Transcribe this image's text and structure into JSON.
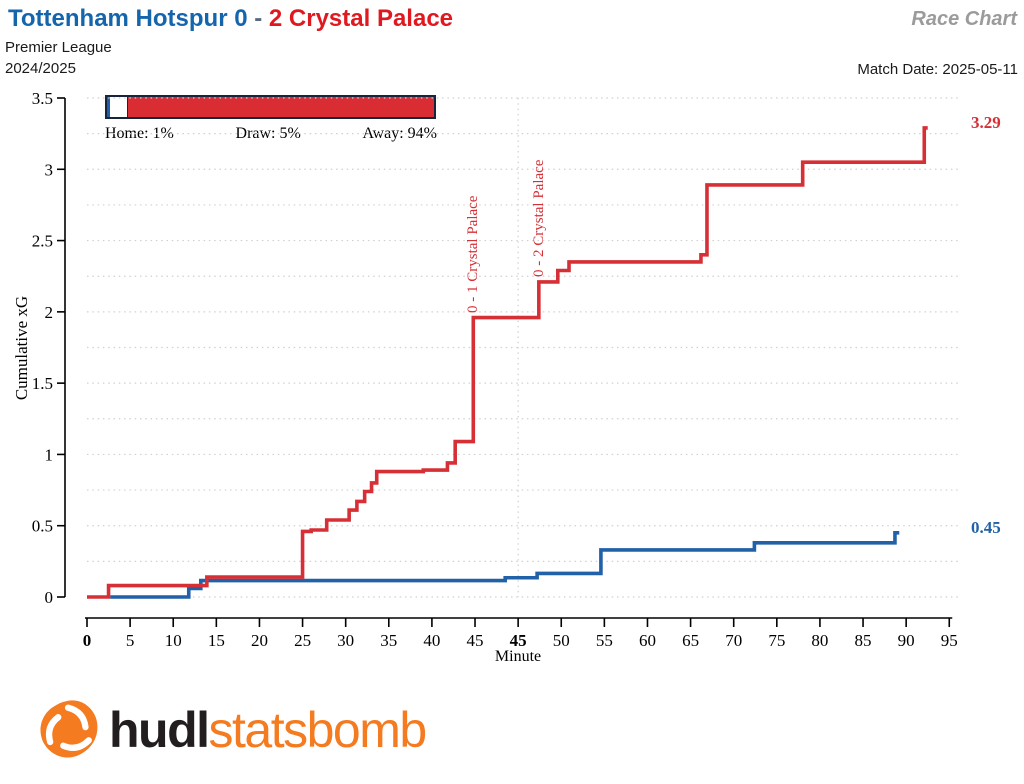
{
  "header": {
    "title_home": "Tottenham Hotspur 0",
    "title_separator": " - ",
    "title_away": "2 Crystal Palace",
    "chart_type_label": "Race Chart",
    "competition": "Premier League",
    "season": "2024/2025",
    "match_date": "Match Date: 2025-05-11"
  },
  "probability": {
    "home_pct": 1,
    "draw_pct": 5,
    "away_pct": 94,
    "home_label": "Home: 1%",
    "draw_label": "Draw: 5%",
    "away_label": "Away: 94%",
    "home_color": "#1f5fa8",
    "draw_color": "#ffffff",
    "away_color": "#da2c33",
    "border_color": "#16243d"
  },
  "chart_data": {
    "type": "line",
    "subtype": "step-after cumulative xG race chart",
    "xlabel": "Minute",
    "ylabel": "Cumulative xG",
    "ylim": [
      0,
      3.5
    ],
    "grid": "dotted, horizontal every 0.25, vertical at second-half 45",
    "y_ticks": [
      {
        "v": 0,
        "label": "0"
      },
      {
        "v": 0.5,
        "label": "0.5"
      },
      {
        "v": 1,
        "label": "1"
      },
      {
        "v": 1.5,
        "label": "1.5"
      },
      {
        "v": 2,
        "label": "2"
      },
      {
        "v": 2.5,
        "label": "2.5"
      },
      {
        "v": 3,
        "label": "3"
      },
      {
        "v": 3.5,
        "label": "3.5"
      }
    ],
    "x_ticks": [
      {
        "p": 1,
        "m": 0,
        "label": "0",
        "bold": true
      },
      {
        "p": 1,
        "m": 5,
        "label": "5"
      },
      {
        "p": 1,
        "m": 10,
        "label": "10"
      },
      {
        "p": 1,
        "m": 15,
        "label": "15"
      },
      {
        "p": 1,
        "m": 20,
        "label": "20"
      },
      {
        "p": 1,
        "m": 25,
        "label": "25"
      },
      {
        "p": 1,
        "m": 30,
        "label": "30"
      },
      {
        "p": 1,
        "m": 35,
        "label": "35"
      },
      {
        "p": 1,
        "m": 40,
        "label": "40"
      },
      {
        "p": 1,
        "m": 45,
        "label": "45"
      },
      {
        "p": 2,
        "m": 45,
        "label": "45",
        "bold": true
      },
      {
        "p": 2,
        "m": 50,
        "label": "50"
      },
      {
        "p": 2,
        "m": 55,
        "label": "55"
      },
      {
        "p": 2,
        "m": 60,
        "label": "60"
      },
      {
        "p": 2,
        "m": 65,
        "label": "65"
      },
      {
        "p": 2,
        "m": 70,
        "label": "70"
      },
      {
        "p": 2,
        "m": 75,
        "label": "75"
      },
      {
        "p": 2,
        "m": 80,
        "label": "80"
      },
      {
        "p": 2,
        "m": 85,
        "label": "85"
      },
      {
        "p": 2,
        "m": 90,
        "label": "90"
      },
      {
        "p": 2,
        "m": 95,
        "label": "95"
      }
    ],
    "series": [
      {
        "name": "Tottenham Hotspur",
        "color": "#2061a8",
        "final_label": "0.45",
        "final_value": 0.45,
        "points": [
          [
            1,
            2.7,
            0.0
          ],
          [
            1,
            11.8,
            0.06
          ],
          [
            1,
            13.2,
            0.115
          ],
          [
            1,
            48.5,
            0.135
          ],
          [
            2,
            47.2,
            0.165
          ],
          [
            2,
            54.6,
            0.33
          ],
          [
            2,
            72.4,
            0.38
          ],
          [
            2,
            88.7,
            0.45
          ],
          [
            2,
            89.2,
            0.45
          ]
        ]
      },
      {
        "name": "Crystal Palace",
        "color": "#d63036",
        "final_label": "3.29",
        "final_value": 3.29,
        "points": [
          [
            1,
            0,
            0.0
          ],
          [
            1,
            2.5,
            0.08
          ],
          [
            1,
            13.9,
            0.14
          ],
          [
            1,
            25,
            0.46
          ],
          [
            1,
            26,
            0.47
          ],
          [
            1,
            27.8,
            0.54
          ],
          [
            1,
            30.4,
            0.61
          ],
          [
            1,
            31.3,
            0.67
          ],
          [
            1,
            32.2,
            0.74
          ],
          [
            1,
            33,
            0.8
          ],
          [
            1,
            33.6,
            0.88
          ],
          [
            1,
            39,
            0.89
          ],
          [
            1,
            41.8,
            0.94
          ],
          [
            1,
            42.7,
            1.09
          ],
          [
            1,
            44.8,
            1.96
          ],
          [
            2,
            47.4,
            2.21
          ],
          [
            2,
            49.6,
            2.29
          ],
          [
            2,
            50.9,
            2.35
          ],
          [
            2,
            66.2,
            2.4
          ],
          [
            2,
            66.9,
            2.89
          ],
          [
            2,
            78,
            3.05
          ],
          [
            2,
            92.1,
            3.29
          ],
          [
            2,
            92.5,
            3.29
          ]
        ]
      }
    ],
    "annotations": [
      {
        "text": "0 - 1 Crystal Palace",
        "p": 1,
        "m": 44.8,
        "value": 1.96,
        "color": "#d63036"
      },
      {
        "text": "0 - 2 Crystal Palace",
        "p": 2,
        "m": 47.4,
        "value": 2.21,
        "color": "#d63036"
      }
    ]
  },
  "footer": {
    "logo_hudl": "hudl",
    "logo_statsbomb": "statsbomb",
    "logo_color": "#f47b20"
  },
  "colors": {
    "home_blue": "#1565ad",
    "away_red": "#e0181f",
    "axis_black": "#000000",
    "grid_gray": "#d0d0d0",
    "race_chart_gray": "#9b9b9b"
  }
}
